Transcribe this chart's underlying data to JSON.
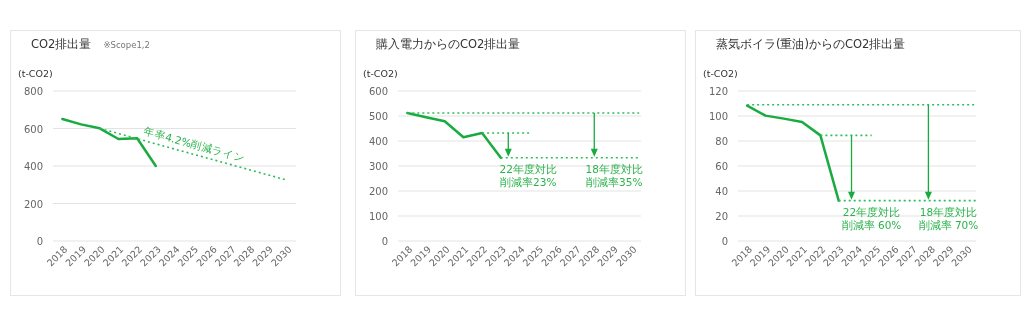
{
  "chart_data": [
    {
      "type": "line",
      "title": "CO2排出量",
      "subtitle": "※Scope1,2",
      "ylabel": "(t-CO2)",
      "xlim": [
        2017.5,
        2030.5
      ],
      "xticks": [
        2018,
        2019,
        2020,
        2021,
        2022,
        2023,
        2024,
        2025,
        2026,
        2027,
        2028,
        2029,
        2030
      ],
      "ylim": [
        0,
        800
      ],
      "yticks": [
        0,
        200,
        400,
        600,
        800
      ],
      "grid": "y",
      "series": [
        {
          "color": "#1aab40",
          "x": [
            2018,
            2019,
            2020,
            2021,
            2022,
            2023
          ],
          "values": [
            651,
            622,
            601,
            544,
            548,
            400
          ]
        },
        {
          "color": "#2dbd5a",
          "line_style": "dotted",
          "x": [
            2020,
            2030
          ],
          "values": [
            601,
            325
          ]
        }
      ],
      "annotations": [
        "年率4.2%削減ライン"
      ]
    },
    {
      "type": "line",
      "title": "購入電力からのCO2排出量",
      "ylabel": "(t-CO2)",
      "xlim": [
        2017.5,
        2030.5
      ],
      "xticks": [
        2018,
        2019,
        2020,
        2021,
        2022,
        2023,
        2024,
        2025,
        2026,
        2027,
        2028,
        2029,
        2030
      ],
      "ylim": [
        0,
        600
      ],
      "yticks": [
        0,
        100,
        200,
        300,
        400,
        500,
        600
      ],
      "grid": "y",
      "series": [
        {
          "color": "#1aab40",
          "x": [
            2018,
            2019,
            2020,
            2021,
            2022,
            2023
          ],
          "values": [
            512,
            495,
            479,
            415,
            432,
            333
          ]
        },
        {
          "color": "#2dbd5a",
          "line_style": "dotted",
          "x": [
            2018,
            2030.4
          ],
          "values": [
            512,
            512
          ]
        },
        {
          "color": "#2dbd5a",
          "line_style": "dotted",
          "x": [
            2022,
            2024.6
          ],
          "values": [
            432,
            432
          ]
        },
        {
          "color": "#2dbd5a",
          "line_style": "dotted",
          "x": [
            2023,
            2030.4
          ],
          "values": [
            333,
            333
          ]
        }
      ],
      "annotations": [
        {
          "text": "22年度対比削減率23%",
          "x": 2023.4,
          "y": 333
        },
        {
          "text": "18年度対比削減率35%",
          "x": 2028,
          "y": 333
        }
      ]
    },
    {
      "type": "line",
      "title": "蒸気ボイラ(重油)からのCO2排出量",
      "ylabel": "(t-CO2)",
      "xlim": [
        2017.5,
        2030.5
      ],
      "xticks": [
        2018,
        2019,
        2020,
        2021,
        2022,
        2023,
        2024,
        2025,
        2026,
        2027,
        2028,
        2029,
        2030
      ],
      "ylim": [
        0,
        120
      ],
      "yticks": [
        0,
        20,
        40,
        60,
        80,
        100,
        120
      ],
      "grid": "y",
      "series": [
        {
          "color": "#1aab40",
          "x": [
            2018,
            2019,
            2020,
            2021,
            2022,
            2023
          ],
          "values": [
            108.3,
            100.3,
            97.9,
            95.2,
            84.5,
            32.3
          ]
        },
        {
          "color": "#2dbd5a",
          "line_style": "dotted",
          "x": [
            2018,
            2030.5
          ],
          "values": [
            109,
            109
          ]
        },
        {
          "color": "#2dbd5a",
          "line_style": "dotted",
          "x": [
            2022,
            2024.8
          ],
          "values": [
            84.5,
            84.5
          ]
        },
        {
          "color": "#2dbd5a",
          "line_style": "dotted",
          "x": [
            2023,
            2030.5
          ],
          "values": [
            32.3,
            32.3
          ]
        }
      ],
      "annotations": [
        {
          "text": "22年度対比削減率 60%",
          "x": 2023.7,
          "y": 32.3
        },
        {
          "text": "18年度対比削減率 70%",
          "x": 2027.9,
          "y": 32.3
        }
      ]
    }
  ]
}
